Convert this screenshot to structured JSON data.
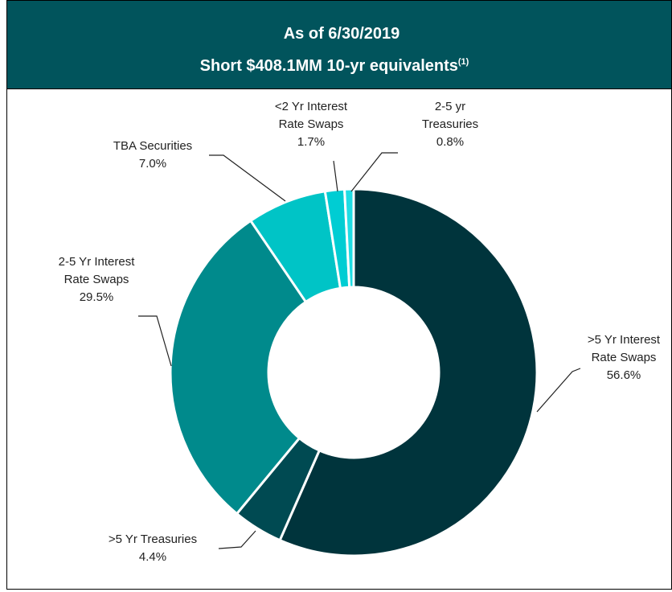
{
  "chart_data": {
    "type": "pie",
    "title": "As of 6/30/2019",
    "subtitle": "Short $408.1MM 10-yr equivalents",
    "subtitle_note": "(1)",
    "categories": [
      [
        ">5 Yr Interest",
        "Rate Swaps"
      ],
      [
        ">5 Yr Treasuries"
      ],
      [
        "2-5 Yr Interest",
        "Rate Swaps"
      ],
      [
        "TBA Securities"
      ],
      [
        "<2 Yr Interest",
        "Rate Swaps"
      ],
      [
        "2-5 yr",
        "Treasuries"
      ]
    ],
    "values": [
      56.6,
      4.4,
      29.5,
      7.0,
      1.7,
      0.8
    ],
    "value_labels": [
      "56.6%",
      "4.4%",
      "29.5%",
      "7.0%",
      "1.7%",
      "0.8%"
    ],
    "colors": [
      "#00343c",
      "#004a52",
      "#008a8c",
      "#00c4c6",
      "#00cdd3",
      "#1fdde4"
    ]
  }
}
